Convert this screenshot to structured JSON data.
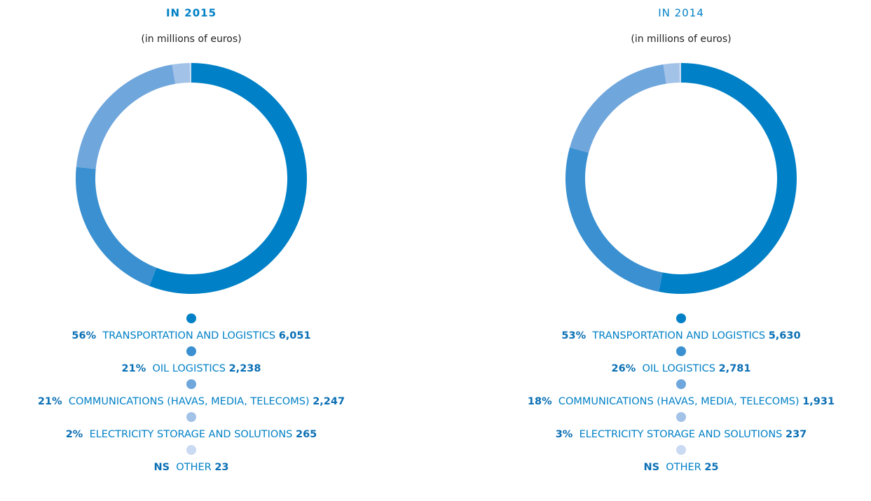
{
  "chart_data": [
    {
      "type": "donut",
      "title": "IN 2015",
      "subtitle": "(in millions of euros)",
      "categories": [
        "TRANSPORTATION AND LOGISTICS",
        "OIL LOGISTICS",
        "COMMUNICATIONS (HAVAS, MEDIA, TELECOMS)",
        "ELECTRICITY STORAGE AND SOLUTIONS",
        "OTHER"
      ],
      "shares": [
        "56%",
        "21%",
        "21%",
        "2%",
        "NS"
      ],
      "values": [
        6051,
        2238,
        2247,
        265,
        23
      ],
      "value_labels": [
        "6,051",
        "2,238",
        "2,247",
        "265",
        "23"
      ],
      "colors": [
        "#0080c6",
        "#3a90d0",
        "#6fa6dc",
        "#a3c2e8",
        "#c9daf2"
      ]
    },
    {
      "type": "donut",
      "title": "IN 2014",
      "subtitle": "(in millions of euros)",
      "categories": [
        "TRANSPORTATION AND LOGISTICS",
        "OIL LOGISTICS",
        "COMMUNICATIONS (HAVAS, MEDIA, TELECOMS)",
        "ELECTRICITY STORAGE AND SOLUTIONS",
        "OTHER"
      ],
      "shares": [
        "53%",
        "26%",
        "18%",
        "3%",
        "NS"
      ],
      "values": [
        5630,
        2781,
        1931,
        237,
        25
      ],
      "value_labels": [
        "5,630",
        "2,781",
        "1,931",
        "237",
        "25"
      ],
      "colors": [
        "#0080c6",
        "#3a90d0",
        "#6fa6dc",
        "#a3c2e8",
        "#c9daf2"
      ]
    }
  ]
}
